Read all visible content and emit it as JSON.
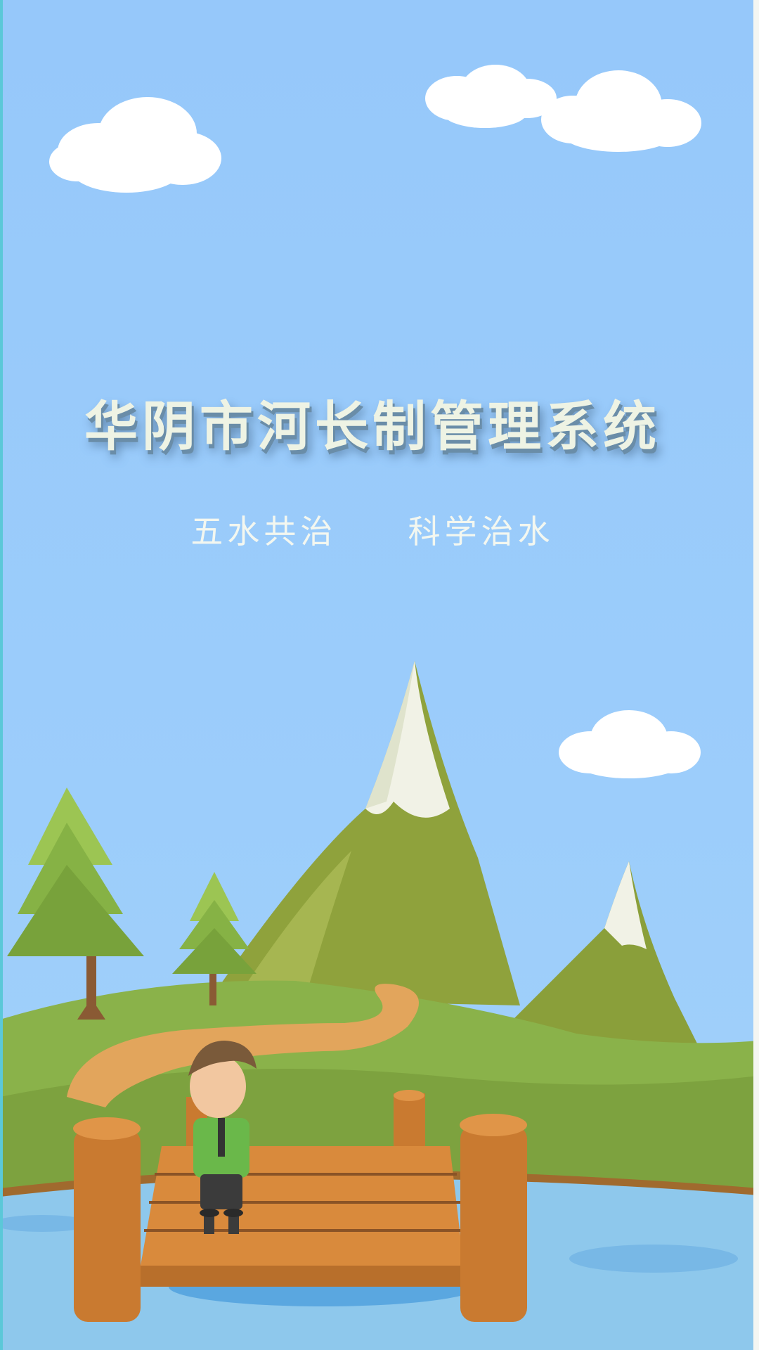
{
  "splash": {
    "app_title": "华阴市河长制管理系统",
    "slogan_left": "五水共治",
    "slogan_right": "科学治水"
  },
  "colors": {
    "sky": "#9ccbf7",
    "cloud": "#ffffff",
    "mountain": "#8fa63e",
    "snow": "#f1f2e6",
    "grass": "#8ab24a",
    "water": "#8ec8ec",
    "dock_wood": "#d98a3c",
    "title_text": "#eef3e4"
  },
  "icons": [
    "cloud-illustration",
    "mountain-illustration",
    "pine-tree-illustration",
    "dock-illustration",
    "man-character-illustration"
  ]
}
